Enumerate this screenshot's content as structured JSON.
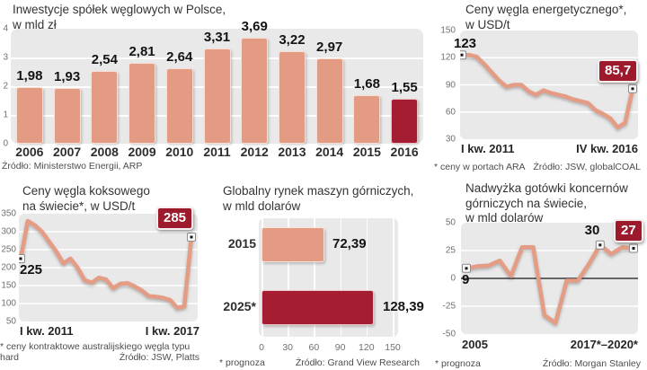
{
  "colors": {
    "salmon": "#e49b84",
    "dark_red": "#a51d32",
    "badge_red": "#9d1a2c",
    "plot_bg": "#e9e9e9",
    "line": "#e59c85"
  },
  "chart_data": [
    {
      "id": "investments",
      "type": "bar",
      "title_lines": [
        "Inwestycje spółek węglowych w Polsce,",
        "w mld zł"
      ],
      "categories": [
        "2006",
        "2007",
        "2008",
        "2009",
        "2010",
        "2011",
        "2012",
        "2013",
        "2014",
        "2015",
        "2016"
      ],
      "values": [
        1.98,
        1.93,
        2.54,
        2.81,
        2.64,
        3.31,
        3.69,
        3.22,
        2.97,
        1.68,
        1.55
      ],
      "value_labels": [
        "1,98",
        "1,93",
        "2,54",
        "2,81",
        "2,64",
        "3,31",
        "3,69",
        "3,22",
        "2,97",
        "1,68",
        "1,55"
      ],
      "highlight_index": 10,
      "ylim": [
        0,
        4
      ],
      "yticks": [
        4,
        3,
        2,
        1,
        0
      ],
      "bar_color": "#e49b84",
      "highlight_color": "#a51d32",
      "source": "Źródło: Ministerstwo Energii, ARP"
    },
    {
      "id": "energy-coal-price",
      "type": "line",
      "title_lines": [
        "Ceny węgla energetycznego*,",
        "w USD/t"
      ],
      "values": [
        123,
        123,
        121,
        113,
        104,
        95,
        88,
        90,
        90,
        83,
        79,
        84,
        81,
        79,
        77,
        74,
        72,
        70,
        62,
        58,
        53,
        43,
        48,
        85.7
      ],
      "ylim": [
        30,
        150
      ],
      "yticks": [
        150,
        120,
        90,
        60,
        30
      ],
      "xlabels": [
        "I kw. 2011",
        "IV kw. 2016"
      ],
      "annotations": {
        "start": "123",
        "end_badge": "85,7"
      },
      "marker_indices": [
        0,
        23
      ],
      "line_color": "#e59c85",
      "footnote": "* ceny w portach ARA",
      "source": "Źródło: JSW, globalCOAL"
    },
    {
      "id": "coking-coal-price",
      "type": "line",
      "title_lines": [
        "Ceny węgla koksowego",
        "na świecie*, w USD/t"
      ],
      "values": [
        225,
        330,
        318,
        300,
        272,
        245,
        212,
        225,
        200,
        165,
        158,
        172,
        167,
        143,
        155,
        157,
        148,
        137,
        121,
        119,
        116,
        110,
        88,
        92,
        285
      ],
      "ylim": [
        50,
        350
      ],
      "yticks": [
        350,
        300,
        250,
        200,
        150,
        100,
        50
      ],
      "xlabels": [
        "I kw. 2011",
        "I kw. 2017"
      ],
      "annotations": {
        "start": "225",
        "end_badge": "285"
      },
      "marker_indices": [
        0,
        24
      ],
      "line_color": "#e59c85",
      "footnote_lines": [
        "* ceny kontraktowe australijskiego węgla typu",
        "hard"
      ],
      "source": "Źródło: JSW, Platts"
    },
    {
      "id": "mining-machinery-market",
      "type": "bar-horizontal",
      "title_lines": [
        "Globalny rynek maszyn górniczych,",
        "w mld dolarów"
      ],
      "categories": [
        "2015",
        "2025*"
      ],
      "values": [
        72.39,
        128.39
      ],
      "value_labels": [
        "72,39",
        "128,39"
      ],
      "xlim": [
        0,
        150
      ],
      "xticks": [
        0,
        30,
        60,
        90,
        120,
        150
      ],
      "bar_colors": [
        "#e49b84",
        "#a51d32"
      ],
      "footnote": "* prognoza",
      "source": "Źródło: Grand View Research"
    },
    {
      "id": "mining-cash-surplus",
      "type": "line",
      "title_lines": [
        "Nadwyżka gotówki koncernów",
        "górniczych na świecie,",
        "w mld dolarów"
      ],
      "values": [
        9,
        11,
        11.5,
        16,
        2,
        28,
        28,
        -33,
        -40,
        -2,
        -2,
        13,
        30,
        22,
        28,
        27
      ],
      "ylim": [
        -50,
        50
      ],
      "yticks": [
        50,
        25,
        0,
        -25,
        -50
      ],
      "zero_line": true,
      "xlabels": [
        "2005",
        "2017*–2020*"
      ],
      "annotations": {
        "start": "9",
        "mid": "30",
        "end_badge": "27"
      },
      "marker_indices": [
        0,
        12,
        15
      ],
      "line_color": "#e59c85",
      "footnote": "* prognoza",
      "source": "Źródło: Morgan Stanley"
    }
  ]
}
